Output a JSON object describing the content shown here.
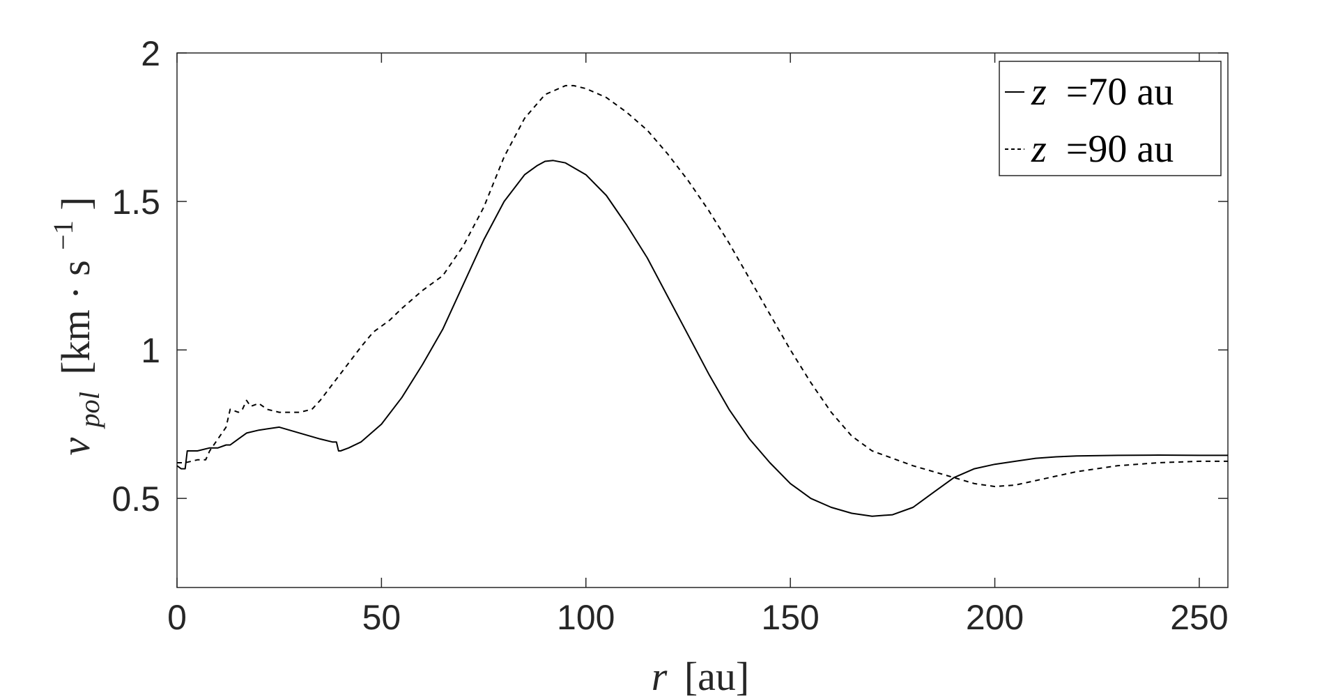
{
  "chart_data": {
    "type": "line",
    "xlabel": {
      "var": "r",
      "unit": "[au]"
    },
    "ylabel": {
      "var": "v",
      "sub": "pol",
      "unit_open": "[km · s",
      "unit_sup": "−1",
      "unit_close": "]"
    },
    "xlim": [
      0,
      257
    ],
    "ylim": [
      0.2,
      2
    ],
    "xticks": [
      0,
      50,
      100,
      150,
      200,
      250
    ],
    "xtick_labels": [
      "0",
      "50",
      "100",
      "150",
      "200",
      "250"
    ],
    "yticks": [
      0.5,
      1,
      1.5,
      2
    ],
    "ytick_labels": [
      "0.5",
      "1",
      "1.5",
      "2"
    ],
    "grid": false,
    "legend_position": "top-right",
    "series": [
      {
        "name": "z =70 au",
        "label_var": "z",
        "label_rest": "=70 au",
        "style": "solid",
        "color": "#000000",
        "x": [
          0,
          1,
          2,
          2.5,
          5,
          8,
          10,
          12,
          13,
          15,
          17,
          20,
          25,
          30,
          35,
          38,
          39,
          39.5,
          40,
          42,
          45,
          50,
          55,
          60,
          65,
          70,
          75,
          80,
          85,
          88,
          90,
          92,
          95,
          100,
          105,
          110,
          115,
          120,
          125,
          130,
          135,
          140,
          145,
          150,
          155,
          160,
          165,
          170,
          175,
          180,
          182,
          185,
          190,
          195,
          200,
          205,
          210,
          215,
          220,
          230,
          240,
          250,
          257
        ],
        "y": [
          0.61,
          0.6,
          0.6,
          0.66,
          0.66,
          0.67,
          0.67,
          0.68,
          0.68,
          0.7,
          0.72,
          0.73,
          0.74,
          0.72,
          0.7,
          0.69,
          0.69,
          0.66,
          0.66,
          0.67,
          0.69,
          0.75,
          0.84,
          0.95,
          1.07,
          1.22,
          1.37,
          1.5,
          1.59,
          1.62,
          1.635,
          1.638,
          1.63,
          1.59,
          1.52,
          1.42,
          1.31,
          1.18,
          1.05,
          0.92,
          0.8,
          0.7,
          0.62,
          0.55,
          0.5,
          0.47,
          0.45,
          0.44,
          0.445,
          0.47,
          0.49,
          0.52,
          0.57,
          0.6,
          0.615,
          0.625,
          0.635,
          0.64,
          0.643,
          0.645,
          0.646,
          0.645,
          0.645
        ]
      },
      {
        "name": "z =90 au",
        "label_var": "z",
        "label_rest": "=90 au",
        "style": "dashed",
        "color": "#000000",
        "x": [
          0,
          2,
          5,
          7,
          8,
          10,
          12,
          13,
          15,
          16,
          17,
          18,
          20,
          22,
          25,
          30,
          33,
          35,
          40,
          45,
          48,
          50,
          52,
          55,
          60,
          65,
          70,
          75,
          80,
          85,
          90,
          95,
          97,
          100,
          105,
          110,
          115,
          120,
          125,
          130,
          135,
          140,
          145,
          150,
          155,
          160,
          165,
          170,
          180,
          190,
          195,
          200,
          205,
          210,
          220,
          230,
          240,
          250,
          257
        ],
        "y": [
          0.62,
          0.62,
          0.63,
          0.63,
          0.66,
          0.7,
          0.74,
          0.8,
          0.79,
          0.8,
          0.83,
          0.81,
          0.82,
          0.8,
          0.79,
          0.79,
          0.8,
          0.83,
          0.92,
          1.01,
          1.06,
          1.08,
          1.1,
          1.14,
          1.2,
          1.25,
          1.35,
          1.48,
          1.65,
          1.78,
          1.86,
          1.89,
          1.89,
          1.88,
          1.85,
          1.8,
          1.74,
          1.66,
          1.57,
          1.47,
          1.36,
          1.24,
          1.12,
          1.0,
          0.89,
          0.79,
          0.71,
          0.66,
          0.61,
          0.57,
          0.55,
          0.54,
          0.545,
          0.56,
          0.59,
          0.61,
          0.62,
          0.625,
          0.625
        ]
      }
    ]
  }
}
